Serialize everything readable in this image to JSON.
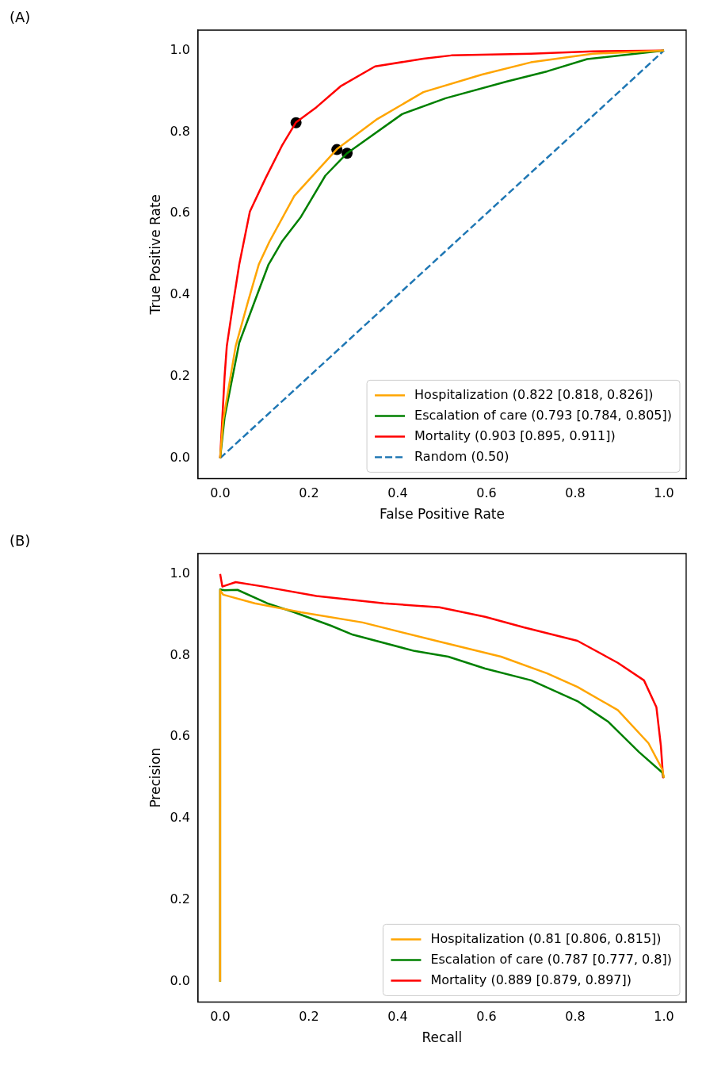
{
  "chart_data": [
    {
      "type": "line",
      "xlabel": "False Positive Rate",
      "ylabel": "True Positive Rate",
      "annotations": [
        "(A)"
      ],
      "legend": "bottom right",
      "grid": false,
      "xlim": [
        -0.05,
        1.05
      ],
      "ylim": [
        -0.05,
        1.05
      ],
      "xticks": [
        {
          "value": 0,
          "label": "0.0"
        },
        {
          "value": 0.2,
          "label": "0.2"
        },
        {
          "value": 0.4,
          "label": "0.4"
        },
        {
          "value": 0.6,
          "label": "0.6"
        },
        {
          "value": 0.8,
          "label": "0.8"
        },
        {
          "value": 1,
          "label": "1.0"
        }
      ],
      "yticks": [
        {
          "value": 0,
          "label": "0.0"
        },
        {
          "value": 0.2,
          "label": "0.2"
        },
        {
          "value": 0.4,
          "label": "0.4"
        },
        {
          "value": 0.6,
          "label": "0.6"
        },
        {
          "value": 0.8,
          "label": "0.8"
        },
        {
          "value": 1,
          "label": "1.0"
        }
      ],
      "series": [
        {
          "name": "Hospitalization (0.822 [0.818, 0.826])",
          "type": "line",
          "color": "#ffa500",
          "line_style": "solid",
          "marker": "none",
          "x": [
            0,
            0.007,
            0.035,
            0.063,
            0.087,
            0.111,
            0.167,
            0.263,
            0.354,
            0.458,
            0.59,
            0.7,
            0.84,
            1
          ],
          "values": [
            0,
            0.094,
            0.275,
            0.385,
            0.475,
            0.531,
            0.643,
            0.758,
            0.832,
            0.898,
            0.941,
            0.971,
            0.992,
            1
          ]
        },
        {
          "name": "Escalation of care (0.793 [0.784, 0.805])",
          "type": "line",
          "color": "#008000",
          "line_style": "solid",
          "marker": "none",
          "x": [
            0,
            0.01,
            0.043,
            0.078,
            0.109,
            0.139,
            0.182,
            0.237,
            0.286,
            0.41,
            0.508,
            0.646,
            0.737,
            0.827,
            1
          ],
          "values": [
            0,
            0.1,
            0.283,
            0.385,
            0.475,
            0.531,
            0.592,
            0.693,
            0.748,
            0.844,
            0.883,
            0.924,
            0.949,
            0.979,
            1
          ]
        },
        {
          "name": "Mortality (0.903 [0.895, 0.911])",
          "type": "line",
          "color": "#ff0000",
          "line_style": "solid",
          "marker": "none",
          "x": [
            0,
            0.01,
            0.015,
            0.03,
            0.043,
            0.067,
            0.102,
            0.139,
            0.171,
            0.217,
            0.271,
            0.349,
            0.458,
            0.521,
            0.7,
            0.84,
            1
          ],
          "values": [
            0,
            0.2,
            0.275,
            0.385,
            0.475,
            0.605,
            0.686,
            0.766,
            0.824,
            0.861,
            0.912,
            0.961,
            0.98,
            0.988,
            0.992,
            0.998,
            1
          ]
        },
        {
          "name": "Random (0.50)",
          "type": "line",
          "color": "#1f77b4",
          "line_style": "dashed",
          "marker": "none",
          "x": [
            0,
            1
          ],
          "values": [
            0,
            1
          ]
        },
        {
          "type": "scatter",
          "color": "#000000",
          "marker": "circle",
          "x": [
            0.171,
            0.263,
            0.286
          ],
          "values": [
            0.823,
            0.757,
            0.748
          ]
        }
      ]
    },
    {
      "type": "line",
      "xlabel": "Recall",
      "ylabel": "Precision",
      "annotations": [
        "(B)"
      ],
      "legend": "bottom right",
      "grid": false,
      "xlim": [
        -0.05,
        1.05
      ],
      "ylim": [
        -0.05,
        1.05
      ],
      "xticks": [
        {
          "value": 0,
          "label": "0.0"
        },
        {
          "value": 0.2,
          "label": "0.2"
        },
        {
          "value": 0.4,
          "label": "0.4"
        },
        {
          "value": 0.6,
          "label": "0.6"
        },
        {
          "value": 0.8,
          "label": "0.8"
        },
        {
          "value": 1,
          "label": "1.0"
        }
      ],
      "yticks": [
        {
          "value": 0,
          "label": "0.0"
        },
        {
          "value": 0.2,
          "label": "0.2"
        },
        {
          "value": 0.4,
          "label": "0.4"
        },
        {
          "value": 0.6,
          "label": "0.6"
        },
        {
          "value": 0.8,
          "label": "0.8"
        },
        {
          "value": 1,
          "label": "1.0"
        }
      ],
      "series": [
        {
          "name": "Hospitalization (0.81 [0.806, 0.815])",
          "type": "line",
          "color": "#ffa500",
          "line_style": "solid",
          "marker": "none",
          "x": [
            0,
            0,
            0.007,
            0.078,
            0.182,
            0.321,
            0.494,
            0.633,
            0.737,
            0.805,
            0.896,
            0.965,
            0.996,
            1
          ],
          "values": [
            0,
            0.96,
            0.949,
            0.928,
            0.906,
            0.881,
            0.834,
            0.797,
            0.756,
            0.723,
            0.666,
            0.585,
            0.521,
            0.5
          ]
        },
        {
          "name": "Escalation of care (0.787 [0.777, 0.8])",
          "type": "line",
          "color": "#008000",
          "line_style": "solid",
          "marker": "none",
          "x": [
            0,
            0,
            0.01,
            0.039,
            0.106,
            0.167,
            0.25,
            0.299,
            0.438,
            0.514,
            0.597,
            0.701,
            0.805,
            0.875,
            0.944,
            0.996,
            1
          ],
          "values": [
            0,
            0.962,
            0.96,
            0.961,
            0.928,
            0.906,
            0.873,
            0.851,
            0.811,
            0.797,
            0.768,
            0.739,
            0.688,
            0.637,
            0.563,
            0.513,
            0.5
          ]
        },
        {
          "name": "Mortality (0.889 [0.879, 0.897])",
          "type": "line",
          "color": "#ff0000",
          "line_style": "solid",
          "marker": "none",
          "x": [
            0,
            0.005,
            0.035,
            0.098,
            0.217,
            0.369,
            0.494,
            0.597,
            0.684,
            0.805,
            0.896,
            0.955,
            0.983,
            0.993,
            0.998,
            1
          ],
          "values": [
            1,
            0.969,
            0.98,
            0.969,
            0.946,
            0.928,
            0.918,
            0.895,
            0.869,
            0.836,
            0.782,
            0.739,
            0.673,
            0.579,
            0.501,
            0.5
          ]
        }
      ]
    }
  ]
}
